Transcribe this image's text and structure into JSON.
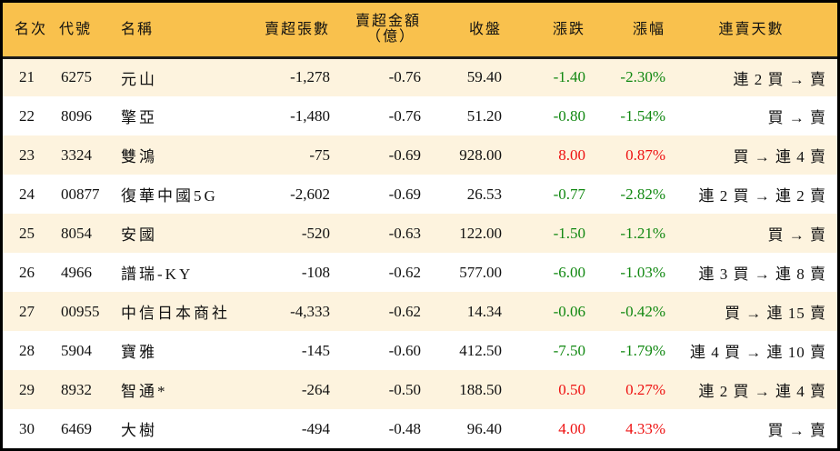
{
  "colors": {
    "header_bg": "#F9C14D",
    "row_odd_bg": "#FDF3DE",
    "row_even_bg": "#FFFFFF",
    "up": "#EE1111",
    "down": "#118811",
    "border": "#000000"
  },
  "table": {
    "headers": {
      "rank": "名次",
      "code": "代號",
      "name": "名稱",
      "net_sell_volume": "賣超張數",
      "net_sell_amount_line1": "賣超金額",
      "net_sell_amount_line2": "（億）",
      "close": "收盤",
      "change": "漲跌",
      "change_pct": "漲幅",
      "streak": "連賣天數"
    },
    "rows": [
      {
        "rank": "21",
        "code": "6275",
        "name": "元山",
        "volume": "-1,278",
        "amount": "-0.76",
        "close": "59.40",
        "change": "-1.40",
        "pct": "-2.30%",
        "dir": "down",
        "streak": "連 2 買 → 賣"
      },
      {
        "rank": "22",
        "code": "8096",
        "name": "擎亞",
        "volume": "-1,480",
        "amount": "-0.76",
        "close": "51.20",
        "change": "-0.80",
        "pct": "-1.54%",
        "dir": "down",
        "streak": "買 → 賣"
      },
      {
        "rank": "23",
        "code": "3324",
        "name": "雙鴻",
        "volume": "-75",
        "amount": "-0.69",
        "close": "928.00",
        "change": "8.00",
        "pct": "0.87%",
        "dir": "up",
        "streak": "買 → 連 4 賣"
      },
      {
        "rank": "24",
        "code": "00877",
        "name": "復華中國5G",
        "volume": "-2,602",
        "amount": "-0.69",
        "close": "26.53",
        "change": "-0.77",
        "pct": "-2.82%",
        "dir": "down",
        "streak": "連 2 買 → 連 2 賣"
      },
      {
        "rank": "25",
        "code": "8054",
        "name": "安國",
        "volume": "-520",
        "amount": "-0.63",
        "close": "122.00",
        "change": "-1.50",
        "pct": "-1.21%",
        "dir": "down",
        "streak": "買 → 賣"
      },
      {
        "rank": "26",
        "code": "4966",
        "name": "譜瑞-KY",
        "volume": "-108",
        "amount": "-0.62",
        "close": "577.00",
        "change": "-6.00",
        "pct": "-1.03%",
        "dir": "down",
        "streak": "連 3 買 → 連 8 賣"
      },
      {
        "rank": "27",
        "code": "00955",
        "name": "中信日本商社",
        "volume": "-4,333",
        "amount": "-0.62",
        "close": "14.34",
        "change": "-0.06",
        "pct": "-0.42%",
        "dir": "down",
        "streak": "買 → 連 15 賣"
      },
      {
        "rank": "28",
        "code": "5904",
        "name": "寶雅",
        "volume": "-145",
        "amount": "-0.60",
        "close": "412.50",
        "change": "-7.50",
        "pct": "-1.79%",
        "dir": "down",
        "streak": "連 4 買 → 連 10 賣"
      },
      {
        "rank": "29",
        "code": "8932",
        "name": "智通*",
        "volume": "-264",
        "amount": "-0.50",
        "close": "188.50",
        "change": "0.50",
        "pct": "0.27%",
        "dir": "up",
        "streak": "連 2 買 → 連 4 賣"
      },
      {
        "rank": "30",
        "code": "6469",
        "name": "大樹",
        "volume": "-494",
        "amount": "-0.48",
        "close": "96.40",
        "change": "4.00",
        "pct": "4.33%",
        "dir": "up",
        "streak": "買 → 賣"
      }
    ]
  }
}
